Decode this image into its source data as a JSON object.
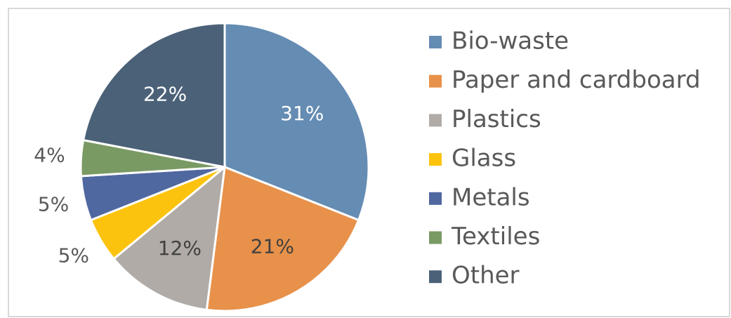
{
  "chart_data": {
    "type": "pie",
    "categories": [
      "Bio-waste",
      "Paper and cardboard",
      "Plastics",
      "Glass",
      "Metals",
      "Textiles",
      "Other"
    ],
    "values": [
      31,
      21,
      12,
      5,
      5,
      4,
      22
    ],
    "value_labels": [
      "31%",
      "21%",
      "12%",
      "5%",
      "5%",
      "4%",
      "22%"
    ],
    "colors": [
      "#658cb3",
      "#e8914a",
      "#b0aba7",
      "#fcc30e",
      "#5068a0",
      "#7a9a64",
      "#4a6178"
    ],
    "legend": "right"
  }
}
